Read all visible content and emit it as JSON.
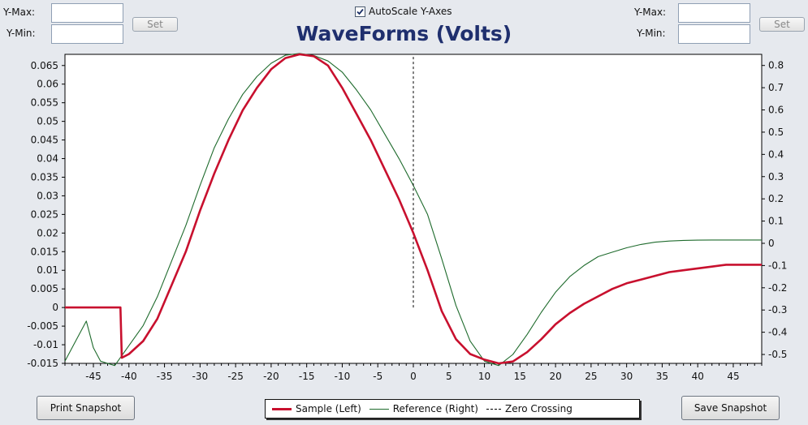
{
  "left_axis_controls": {
    "ymax_label": "Y-Max:",
    "ymin_label": "Y-Min:",
    "ymax_value": "",
    "ymin_value": "",
    "set_label": "Set"
  },
  "right_axis_controls": {
    "ymax_label": "Y-Max:",
    "ymin_label": "Y-Min:",
    "ymax_value": "",
    "ymin_value": "",
    "set_label": "Set"
  },
  "autoscale": {
    "label": "AutoScale Y-Axes",
    "checked": true
  },
  "buttons": {
    "print": "Print Snapshot",
    "save": "Save Snapshot"
  },
  "chart_data": {
    "type": "line",
    "title": "WaveForms (Volts)",
    "xlabel": "",
    "ylabel": "",
    "y2label": "",
    "xlim": [
      -49,
      49
    ],
    "ylim": [
      -0.015,
      0.068
    ],
    "y2lim": [
      -0.54,
      0.85
    ],
    "x_ticks": [
      -45,
      -40,
      -35,
      -30,
      -25,
      -20,
      -15,
      -10,
      -5,
      0,
      5,
      10,
      15,
      20,
      25,
      30,
      35,
      40,
      45
    ],
    "y_ticks": [
      0.065,
      0.06,
      0.055,
      0.05,
      0.045,
      0.04,
      0.035,
      0.03,
      0.025,
      0.02,
      0.015,
      0.01,
      0.005,
      0,
      -0.005,
      -0.01,
      -0.015
    ],
    "y_tick_labels": [
      "0.065",
      "0.06",
      "0.055",
      "0.05",
      "0.045",
      "0.04",
      "0.035",
      "0.03",
      "0.025",
      "0.02",
      "0.015",
      "0.01",
      "0.005",
      "0",
      "-0.005",
      "-0.01",
      "-0.015"
    ],
    "y2_ticks": [
      0.8,
      0.7,
      0.6,
      0.5,
      0.4,
      0.3,
      0.2,
      0.1,
      0,
      -0.1,
      -0.2,
      -0.3,
      -0.4,
      -0.5
    ],
    "y2_tick_labels": [
      "0.8",
      "0.7",
      "0.6",
      "0.5",
      "0.4",
      "0.3",
      "0.2",
      "0.1",
      "0",
      "-0.1",
      "-0.2",
      "-0.3",
      "-0.4",
      "-0.5"
    ],
    "series": [
      {
        "name": "Sample (Left)",
        "axis": "left",
        "color": "#c8102e",
        "style": "solid",
        "x": [
          -49,
          -42,
          -41.2,
          -41,
          -40,
          -38,
          -36,
          -34,
          -32,
          -30,
          -28,
          -26,
          -24,
          -22,
          -20,
          -18,
          -16,
          -14,
          -12,
          -10,
          -8,
          -6,
          -4,
          -2,
          0,
          2,
          4,
          6,
          8,
          10,
          12,
          14,
          16,
          18,
          20,
          22,
          24,
          26,
          28,
          30,
          32,
          34,
          36,
          38,
          40,
          42,
          44,
          46,
          49
        ],
        "y": [
          0,
          0,
          0,
          -0.0135,
          -0.0125,
          -0.009,
          -0.003,
          0.006,
          0.015,
          0.026,
          0.036,
          0.045,
          0.053,
          0.059,
          0.064,
          0.067,
          0.068,
          0.0675,
          0.065,
          0.059,
          0.052,
          0.045,
          0.037,
          0.029,
          0.02,
          0.01,
          -0.001,
          -0.0085,
          -0.0125,
          -0.014,
          -0.015,
          -0.0145,
          -0.012,
          -0.0085,
          -0.0045,
          -0.0015,
          0.001,
          0.003,
          0.005,
          0.0065,
          0.0075,
          0.0085,
          0.0095,
          0.01,
          0.0105,
          0.011,
          0.0115,
          0.0115,
          0.0115
        ]
      },
      {
        "name": "Reference (Right)",
        "axis": "right",
        "color": "#1f6b2d",
        "style": "solid",
        "x": [
          -49,
          -47.5,
          -46,
          -45,
          -44,
          -42,
          -40,
          -38,
          -36,
          -34,
          -32,
          -30,
          -28,
          -26,
          -24,
          -22,
          -20,
          -18,
          -16,
          -14,
          -12,
          -10,
          -8,
          -6,
          -4,
          -2,
          0,
          2,
          4,
          6,
          8,
          10,
          12,
          14,
          16,
          18,
          20,
          22,
          24,
          26,
          28,
          30,
          32,
          34,
          36,
          38,
          40,
          42,
          44,
          46,
          49
        ],
        "y": [
          -0.53,
          -0.44,
          -0.35,
          -0.47,
          -0.53,
          -0.55,
          -0.46,
          -0.37,
          -0.24,
          -0.08,
          0.08,
          0.26,
          0.43,
          0.56,
          0.67,
          0.75,
          0.81,
          0.846,
          0.854,
          0.845,
          0.82,
          0.77,
          0.69,
          0.6,
          0.49,
          0.38,
          0.26,
          0.13,
          -0.07,
          -0.28,
          -0.44,
          -0.53,
          -0.55,
          -0.5,
          -0.41,
          -0.31,
          -0.22,
          -0.15,
          -0.1,
          -0.06,
          -0.04,
          -0.02,
          -0.005,
          0.005,
          0.01,
          0.013,
          0.014,
          0.015,
          0.015,
          0.015,
          0.015
        ]
      },
      {
        "name": "Zero Crossing",
        "axis": "left",
        "color": "#000000",
        "style": "dashed",
        "x": [
          0,
          0
        ],
        "y": [
          0,
          0.068
        ]
      }
    ],
    "legend": {
      "position": "bottom",
      "entries": [
        "Sample (Left)",
        "Reference (Right)",
        "Zero Crossing"
      ]
    }
  }
}
